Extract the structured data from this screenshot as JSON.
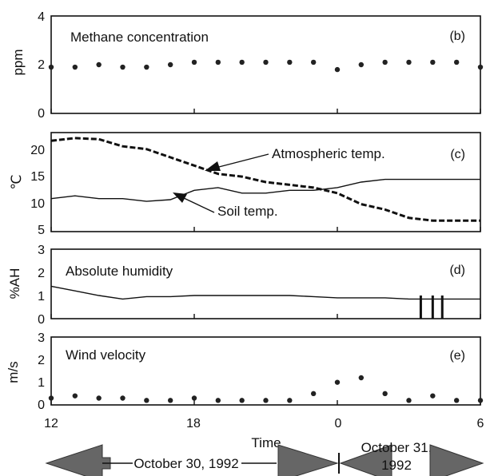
{
  "chart_data": [
    {
      "type": "scatter",
      "panel": "(b)",
      "annotation": "Methane concentration",
      "ylabel": "ppm",
      "ylim": [
        0,
        4
      ],
      "yticks": [
        "0",
        "2",
        "4"
      ],
      "xlim": [
        12,
        30
      ],
      "series": [
        {
          "x": [
            12.0,
            13.0,
            14.0,
            15.0,
            16.0,
            17.0,
            18.0,
            19.0,
            20.0,
            21.0,
            22.0,
            23.0,
            24.0,
            25.0,
            26.0,
            27.0,
            28.0,
            29.0,
            30.0
          ],
          "values": [
            1.9,
            1.9,
            2.0,
            1.9,
            1.9,
            2.0,
            2.1,
            2.1,
            2.1,
            2.1,
            2.1,
            2.1,
            1.8,
            2.0,
            2.1,
            2.1,
            2.1,
            2.1,
            1.9
          ]
        }
      ]
    },
    {
      "type": "line",
      "panel": "(c)",
      "ylabel": "℃",
      "ylim": [
        5,
        23
      ],
      "yticks": [
        "5",
        "10",
        "15",
        "20"
      ],
      "xlim": [
        12,
        30
      ],
      "series": [
        {
          "name": "Atmospheric temp.",
          "x": [
            12.0,
            13.0,
            14.0,
            15.0,
            16.0,
            17.0,
            18.0,
            19.0,
            20.0,
            21.0,
            22.0,
            23.0,
            24.0,
            25.0,
            26.0,
            27.0,
            28.0,
            29.0,
            30.0
          ],
          "values": [
            21.5,
            22.0,
            21.8,
            20.5,
            20.0,
            18.5,
            17.0,
            15.5,
            15.0,
            14.0,
            13.5,
            13.0,
            12.0,
            10.0,
            9.0,
            7.5,
            7.0,
            7.0,
            7.0
          ]
        },
        {
          "name": "Soil temp.",
          "x": [
            12.0,
            13.0,
            14.0,
            15.0,
            16.0,
            17.0,
            18.0,
            19.0,
            20.0,
            21.0,
            22.0,
            23.0,
            24.0,
            25.0,
            26.0,
            27.0,
            28.0,
            29.0,
            30.0
          ],
          "values": [
            11.0,
            11.5,
            11.0,
            11.0,
            10.5,
            10.8,
            12.5,
            13.0,
            12.0,
            12.0,
            12.5,
            12.5,
            13.0,
            14.0,
            14.5,
            14.5,
            14.5,
            14.5,
            14.5
          ]
        }
      ],
      "labels": {
        "atmospheric": "Atmospheric temp.",
        "soil": "Soil temp."
      }
    },
    {
      "type": "line",
      "panel": "(d)",
      "annotation": "Absolute humidity",
      "ylabel": "%AH",
      "ylim": [
        0,
        3
      ],
      "yticks": [
        "0",
        "1",
        "2",
        "3"
      ],
      "xlim": [
        12,
        30
      ],
      "series": [
        {
          "x": [
            12.0,
            13.0,
            14.0,
            15.0,
            16.0,
            17.0,
            18.0,
            19.0,
            20.0,
            21.0,
            22.0,
            23.0,
            24.0,
            25.0,
            26.0,
            27.0,
            28.0,
            29.0,
            30.0
          ],
          "values": [
            1.4,
            1.2,
            1.0,
            0.85,
            0.95,
            0.95,
            1.0,
            1.0,
            1.0,
            1.0,
            1.0,
            0.95,
            0.9,
            0.9,
            0.9,
            0.85,
            0.85,
            0.85,
            0.85
          ]
        }
      ],
      "spikes_x": [
        27.5,
        28.0,
        28.4
      ]
    },
    {
      "type": "scatter",
      "panel": "(e)",
      "annotation": "Wind velocity",
      "ylabel": "m/s",
      "ylim": [
        0,
        3
      ],
      "yticks": [
        "0",
        "1",
        "2",
        "3"
      ],
      "xlim": [
        12,
        30
      ],
      "xticks": [
        "12",
        "18",
        "0",
        "6"
      ],
      "xlabel": "Time",
      "series": [
        {
          "x": [
            12.0,
            13.0,
            14.0,
            15.0,
            16.0,
            17.0,
            18.0,
            19.0,
            20.0,
            21.0,
            22.0,
            23.0,
            24.0,
            25.0,
            26.0,
            27.0,
            28.0,
            29.0,
            30.0
          ],
          "values": [
            0.3,
            0.4,
            0.3,
            0.3,
            0.2,
            0.2,
            0.3,
            0.2,
            0.2,
            0.2,
            0.2,
            0.5,
            1.0,
            1.2,
            0.5,
            0.2,
            0.4,
            0.2,
            0.2
          ]
        }
      ]
    }
  ],
  "xticks": [
    "12",
    "18",
    "0",
    "6"
  ],
  "time_label": "Time",
  "dates": {
    "left": "October 30, 1992",
    "right_line1": "October 31,",
    "right_line2": "1992"
  },
  "colors": {
    "ink": "#111111",
    "background": "#ffffff"
  }
}
